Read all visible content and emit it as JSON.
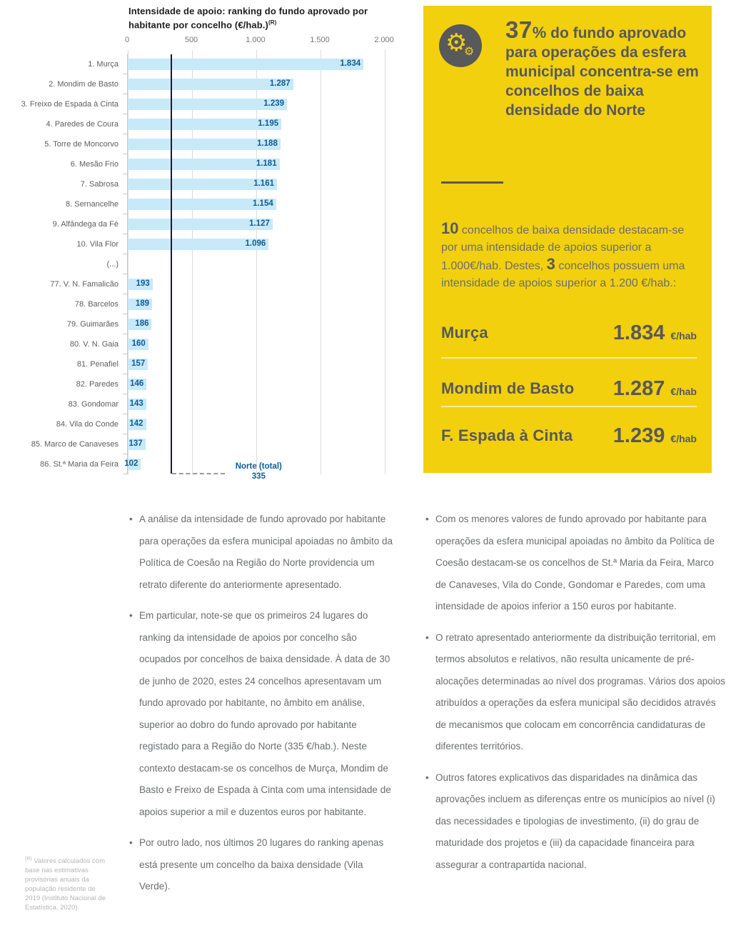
{
  "chart": {
    "title": "Intensidade de apoio: ranking do fundo aprovado por habitante por concelho (€/hab.)",
    "title_sup": "(R)"
  },
  "chart_data": {
    "type": "bar",
    "orientation": "horizontal",
    "title": "Intensidade de apoio: ranking do fundo aprovado por habitante por concelho (€/hab.)",
    "xlim": [
      0,
      2000
    ],
    "x_tick_labels": [
      "0",
      "500",
      "1.000",
      "1.500",
      "2.000"
    ],
    "x_tick_values": [
      0,
      500,
      1000,
      1500,
      2000
    ],
    "grid": true,
    "categories": [
      "1. Murça",
      "2. Mondim de Basto",
      "3. Freixo de Espada à Cinta",
      "4. Paredes de Coura",
      "5. Torre de Moncorvo",
      "6. Mesão Frio",
      "7. Sabrosa",
      "8. Sernancelhe",
      "9. Alfândega da Fé",
      "10. Vila Flor",
      "(...)",
      "77. V. N. Famalicão",
      "78. Barcelos",
      "79. Guimarães",
      "80. V. N. Gaia",
      "81. Penafiel",
      "82. Paredes",
      "83. Gondomar",
      "84. Vila do Conde",
      "85. Marco de Canaveses",
      "86. St.ª Maria da Feira"
    ],
    "values": [
      1834,
      1287,
      1239,
      1195,
      1188,
      1181,
      1161,
      1154,
      1127,
      1096,
      null,
      193,
      189,
      186,
      160,
      157,
      146,
      143,
      142,
      137,
      102
    ],
    "value_labels": [
      "1.834",
      "1.287",
      "1.239",
      "1.195",
      "1.188",
      "1.181",
      "1.161",
      "1.154",
      "1.127",
      "1.096",
      "",
      "193",
      "189",
      "186",
      "160",
      "157",
      "146",
      "143",
      "142",
      "137",
      "102"
    ],
    "reference_line": {
      "label": "Norte (total)",
      "value": 335,
      "value_label": "335"
    },
    "bar_color": "#c8e9f8",
    "value_color": "#0e5c95"
  },
  "callout": {
    "bg_color": "#f2d00d",
    "icon": "gears-icon",
    "heading_stat": "37",
    "heading_pct": "%",
    "heading_rest": " do fundo aprovado para operações da esfera municipal concentra-se em concelhos de baixa densidade do Norte",
    "paragraph": {
      "n1": "10",
      "t1": " concelhos de baixa densidade destacam-se por uma intensidade de apoios superior a 1.000€/hab. Destes, ",
      "n2": "3",
      "t2": " concelhos possuem uma intensidade de apoios superior a 1.200 €/hab.:"
    },
    "stats": [
      {
        "name": "Murça",
        "value": "1.834",
        "unit": "€/hab"
      },
      {
        "name": "Mondim de Basto",
        "value": "1.287",
        "unit": "€/hab"
      },
      {
        "name": "F. Espada à Cinta",
        "value": "1.239",
        "unit": "€/hab"
      }
    ]
  },
  "bullets_left": [
    "A análise da intensidade de fundo aprovado por habitante para operações da esfera municipal apoiadas no âmbito da Política de Coesão na Região do Norte providencia um retrato diferente do anteriormente apresentado.",
    "Em particular, note-se que os primeiros 24 lugares do ranking da intensidade de apoios por concelho são ocupados por concelhos de baixa densidade. À data de 30 de junho de 2020, estes 24 concelhos apresentavam um fundo aprovado por habitante, no âmbito em análise, superior ao dobro do fundo aprovado por habitante registado para a Região do Norte (335 €/hab.). Neste contexto destacam-se os concelhos de Murça, Mondim de Basto e Freixo de Espada à Cinta com uma intensidade de apoios superior a mil e duzentos euros por habitante.",
    "Por outro lado, nos últimos 20 lugares do ranking apenas está presente um concelho da baixa densidade (Vila Verde)."
  ],
  "bullets_right": [
    "Com os menores valores de fundo aprovado por habitante para operações da esfera municipal apoiadas no âmbito da Política de Coesão destacam-se os concelhos de St.ª Maria da Feira, Marco de Canaveses, Vila do Conde, Gondomar e Paredes, com uma intensidade de apoios inferior a 150 euros por habitante.",
    "O retrato apresentado anteriormente da distribuição territorial, em termos absolutos e relativos, não resulta unicamente de pré-alocações determinadas ao nível dos programas. Vários dos apoios atribuídos a operações da esfera municipal são decididos através de mecanismos que colocam em concorrência candidaturas de diferentes territórios.",
    "Outros fatores explicativos das disparidades na dinâmica das aprovações incluem as diferenças entre os municípios ao nível (i) das necessidades e tipologias de investimento, (ii) do grau de maturidade dos projetos e (iii) da capacidade financeira para assegurar a contrapartida nacional."
  ],
  "footnote": {
    "sup": "(R)",
    "text": " Valores calculados com base nas estimativas provisórias anuais da população residente de 2019 (Instituto Nacional de Estatística, 2020)."
  }
}
